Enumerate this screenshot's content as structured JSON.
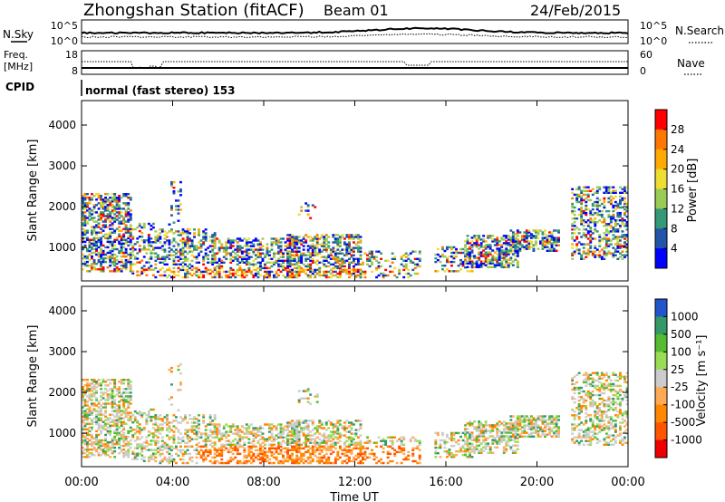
{
  "header": {
    "station": "Zhongshan Station (fitACF)",
    "beam": "Beam 01",
    "date": "24/Feb/2015"
  },
  "noise_panel": {
    "left_label": "N.Sky",
    "right_label": "N.Search",
    "left_ticks": [
      "10^5",
      "10^0"
    ],
    "right_ticks": [
      "10^5",
      "10^0"
    ]
  },
  "freq_panel": {
    "left_label_1": "Freq.",
    "left_label_2": "[MHz]",
    "right_label": "Nave",
    "left_ticks": [
      "18",
      "8"
    ],
    "right_ticks": [
      "60",
      "0"
    ]
  },
  "cpid": {
    "label": "CPID",
    "text": "normal (fast stereo) 153"
  },
  "power_colorbar": {
    "title": "Power [dB]",
    "ticks": [
      "28",
      "24",
      "20",
      "16",
      "12",
      "8",
      "4"
    ],
    "colors": [
      "#ff0000",
      "#ff7700",
      "#ffaa00",
      "#eedd33",
      "#99cc55",
      "#339977",
      "#2255aa",
      "#0000ff"
    ]
  },
  "velocity_colorbar": {
    "title": "Velocity [m s⁻¹]",
    "ticks": [
      "1000",
      "500",
      "100",
      "25",
      "-25",
      "-100",
      "-500",
      "-1000"
    ],
    "colors": [
      "#2255cc",
      "#339966",
      "#55bb33",
      "#99dd55",
      "#cccccc",
      "#ffaa55",
      "#ff8800",
      "#ff5500",
      "#ee0000"
    ]
  },
  "chart_data": [
    {
      "type": "heatmap",
      "title": "Power",
      "xlabel": "",
      "ylabel": "Slant Range [km]",
      "x_ticks": [
        "00:00",
        "04:00",
        "08:00",
        "12:00",
        "16:00",
        "20:00",
        "00:00"
      ],
      "y_ticks": [
        "1000",
        "2000",
        "3000",
        "4000"
      ],
      "ylim": [
        180,
        4600
      ],
      "colorbar_range": [
        0,
        32
      ],
      "colorbar_label": "Power [dB]"
    },
    {
      "type": "heatmap",
      "title": "Velocity",
      "xlabel": "Time UT",
      "ylabel": "Slant Range [km]",
      "x_ticks": [
        "00:00",
        "04:00",
        "08:00",
        "12:00",
        "16:00",
        "20:00",
        "00:00"
      ],
      "y_ticks": [
        "1000",
        "2000",
        "3000",
        "4000"
      ],
      "ylim": [
        180,
        4600
      ],
      "colorbar_range": [
        -1000,
        1000
      ],
      "colorbar_label": "Velocity [m s⁻¹]"
    }
  ],
  "xaxis": {
    "label": "Time UT",
    "ticks": [
      "00:00",
      "04:00",
      "08:00",
      "12:00",
      "16:00",
      "20:00",
      "00:00"
    ]
  }
}
